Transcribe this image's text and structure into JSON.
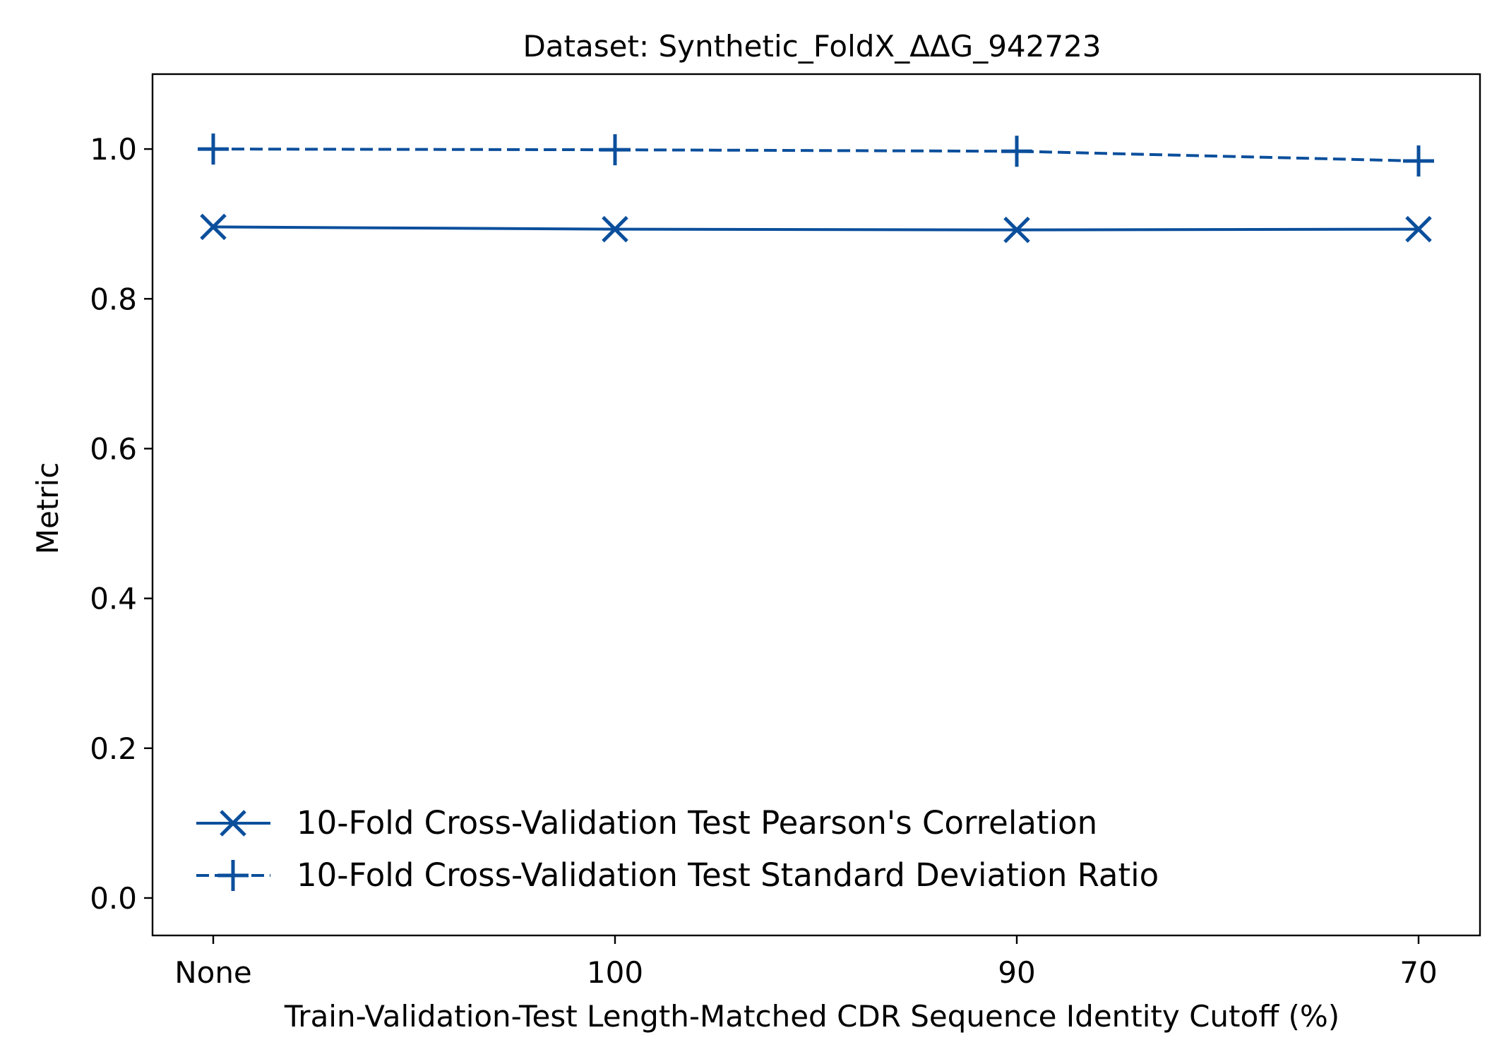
{
  "chart_data": {
    "type": "line",
    "title": "Dataset: Synthetic_FoldX_ΔΔG_942723",
    "xlabel": "Train-Validation-Test Length-Matched CDR Sequence Identity Cutoff (%)",
    "ylabel": "Metric",
    "categories": [
      "None",
      "100",
      "90",
      "70"
    ],
    "ylim": [
      -0.05,
      1.1
    ],
    "yticks": [
      0.0,
      0.2,
      0.4,
      0.6,
      0.8,
      1.0
    ],
    "ytick_labels": [
      "0.0",
      "0.2",
      "0.4",
      "0.6",
      "0.8",
      "1.0"
    ],
    "grid": false,
    "legend_position": "lower-left",
    "series": [
      {
        "name": "10-Fold Cross-Validation Test Pearson's Correlation",
        "values": [
          0.896,
          0.893,
          0.892,
          0.893
        ],
        "marker": "x",
        "line_style": "solid",
        "color": "#0b4f9c"
      },
      {
        "name": "10-Fold Cross-Validation Test Standard Deviation Ratio",
        "values": [
          1.0,
          0.999,
          0.997,
          0.984
        ],
        "marker": "+",
        "line_style": "dashed",
        "color": "#0b4f9c"
      }
    ]
  }
}
